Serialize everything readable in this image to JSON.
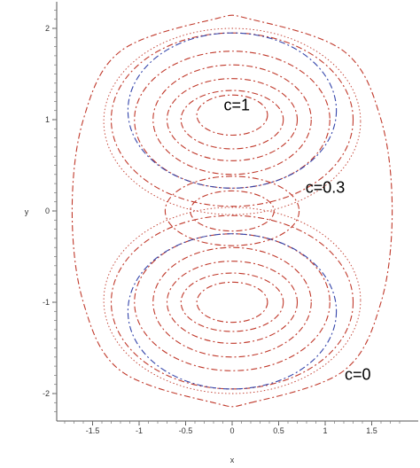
{
  "chart_data": {
    "type": "contour",
    "title": "",
    "xlabel": "x",
    "ylabel": "y",
    "xlim": [
      -1.85,
      1.85
    ],
    "ylim": [
      -2.25,
      2.25
    ],
    "x_ticks": [
      {
        "value": -1.5,
        "label": "-1.5"
      },
      {
        "value": -1,
        "label": "-1"
      },
      {
        "value": -0.5,
        "label": "-0.5"
      },
      {
        "value": 0,
        "label": "0"
      },
      {
        "value": 0.5,
        "label": "0.5"
      },
      {
        "value": 1,
        "label": "1"
      },
      {
        "value": 1.5,
        "label": "1.5"
      }
    ],
    "y_ticks": [
      {
        "value": -2,
        "label": "-2"
      },
      {
        "value": -1,
        "label": "-1"
      },
      {
        "value": 0,
        "label": "0"
      },
      {
        "value": 1,
        "label": "1"
      },
      {
        "value": 2,
        "label": "2"
      }
    ],
    "annotations": [
      {
        "text": "c=1",
        "x": 0.05,
        "y": 1.1
      },
      {
        "text": "c=0.3",
        "x": 1.0,
        "y": 0.2
      },
      {
        "text": "c=0",
        "x": 1.35,
        "y": -1.85
      }
    ],
    "series": [
      {
        "color": "#c0392b",
        "dash": "dashdot",
        "outer_wall": [
          {
            "y": -2.1,
            "halfwidth": 0.2
          },
          {
            "y": -1.75,
            "halfwidth": 1.2
          },
          {
            "y": -1.0,
            "halfwidth": 1.6
          },
          {
            "y": 0.0,
            "halfwidth": 1.72
          },
          {
            "y": 1.0,
            "halfwidth": 1.6
          },
          {
            "y": 1.75,
            "halfwidth": 1.2
          },
          {
            "y": 2.1,
            "halfwidth": 0.2
          }
        ]
      },
      {
        "color": "#c0392b",
        "dash": "dashdot",
        "contours": [
          {
            "cx": 0,
            "cy": 1.0,
            "rx": 1.3,
            "ry": 0.95
          },
          {
            "cx": 0,
            "cy": -1.0,
            "rx": 1.3,
            "ry": 0.95
          },
          {
            "cx": 0,
            "cy": 1.0,
            "rx": 1.05,
            "ry": 0.75
          },
          {
            "cx": 0,
            "cy": -1.0,
            "rx": 1.05,
            "ry": 0.75
          },
          {
            "cx": 0,
            "cy": 1.0,
            "rx": 0.85,
            "ry": 0.6
          },
          {
            "cx": 0,
            "cy": -1.0,
            "rx": 0.85,
            "ry": 0.6
          },
          {
            "cx": 0,
            "cy": 1.0,
            "rx": 0.7,
            "ry": 0.45
          },
          {
            "cx": 0,
            "cy": -1.0,
            "rx": 0.7,
            "ry": 0.45
          },
          {
            "cx": 0,
            "cy": 1.0,
            "rx": 0.55,
            "ry": 0.32
          },
          {
            "cx": 0,
            "cy": -1.0,
            "rx": 0.55,
            "ry": 0.32
          },
          {
            "cx": 0,
            "cy": 1.05,
            "rx": 0.38,
            "ry": 0.22
          },
          {
            "cx": 0,
            "cy": -1.0,
            "rx": 0.38,
            "ry": 0.22
          },
          {
            "cx": 0,
            "cy": 0.0,
            "rx": 0.45,
            "ry": 0.22
          },
          {
            "cx": 0,
            "cy": 0.0,
            "rx": 0.72,
            "ry": 0.38
          }
        ]
      },
      {
        "color": "#3344aa",
        "dash": "dashdot",
        "contours": [
          {
            "cx": 0,
            "cy": 1.1,
            "rx": 1.12,
            "ry": 0.85
          },
          {
            "cx": 0,
            "cy": -1.1,
            "rx": 1.12,
            "ry": 0.85
          }
        ]
      },
      {
        "color": "#c0392b",
        "dash": "dotted",
        "separatrix": [
          {
            "cx": 0,
            "cy": 0.98,
            "rx": 1.38,
            "ry": 1.02
          },
          {
            "cx": 0,
            "cy": -0.98,
            "rx": 1.38,
            "ry": 1.02
          }
        ]
      }
    ]
  }
}
